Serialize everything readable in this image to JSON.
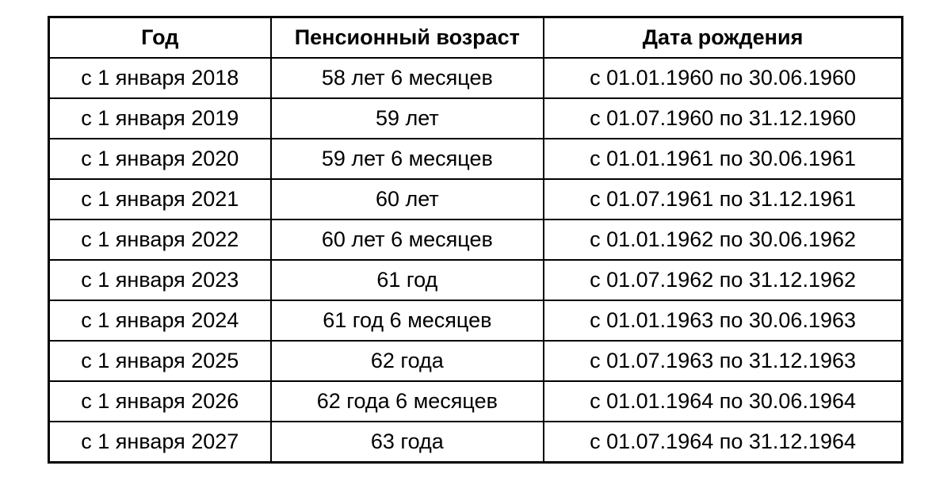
{
  "table": {
    "columns": [
      {
        "key": "year",
        "label": "Год",
        "class": "col-year"
      },
      {
        "key": "age",
        "label": "Пенсионный возраст",
        "class": "col-age"
      },
      {
        "key": "dob",
        "label": "Дата рождения",
        "class": "col-dob"
      }
    ],
    "rows": [
      {
        "year": "с 1 января 2018",
        "age": "58 лет 6 месяцев",
        "dob": "с 01.01.1960 по 30.06.1960"
      },
      {
        "year": "с 1 января 2019",
        "age": "59 лет",
        "dob": "с 01.07.1960 по 31.12.1960"
      },
      {
        "year": "с 1 января 2020",
        "age": "59 лет 6 месяцев",
        "dob": "с 01.01.1961 по 30.06.1961"
      },
      {
        "year": "с 1 января 2021",
        "age": "60 лет",
        "dob": "с 01.07.1961 по 31.12.1961"
      },
      {
        "year": "с 1 января 2022",
        "age": "60 лет 6 месяцев",
        "dob": "с 01.01.1962 по 30.06.1962"
      },
      {
        "year": "с 1 января 2023",
        "age": "61 год",
        "dob": "с 01.07.1962 по 31.12.1962"
      },
      {
        "year": "с 1 января 2024",
        "age": "61 год 6 месяцев",
        "dob": "с 01.01.1963 по 30.06.1963"
      },
      {
        "year": "с 1 января 2025",
        "age": "62 года",
        "dob": "с 01.07.1963 по 31.12.1963"
      },
      {
        "year": "с 1 января 2026",
        "age": "62 года 6 месяцев",
        "dob": "с 01.01.1964 по 30.06.1964"
      },
      {
        "year": "с 1 января 2027",
        "age": "63 года",
        "dob": "с 01.07.1964 по 31.12.1964"
      }
    ],
    "border_color": "#000000",
    "background_color": "#ffffff",
    "header_fontsize": 27,
    "cell_fontsize": 27
  }
}
